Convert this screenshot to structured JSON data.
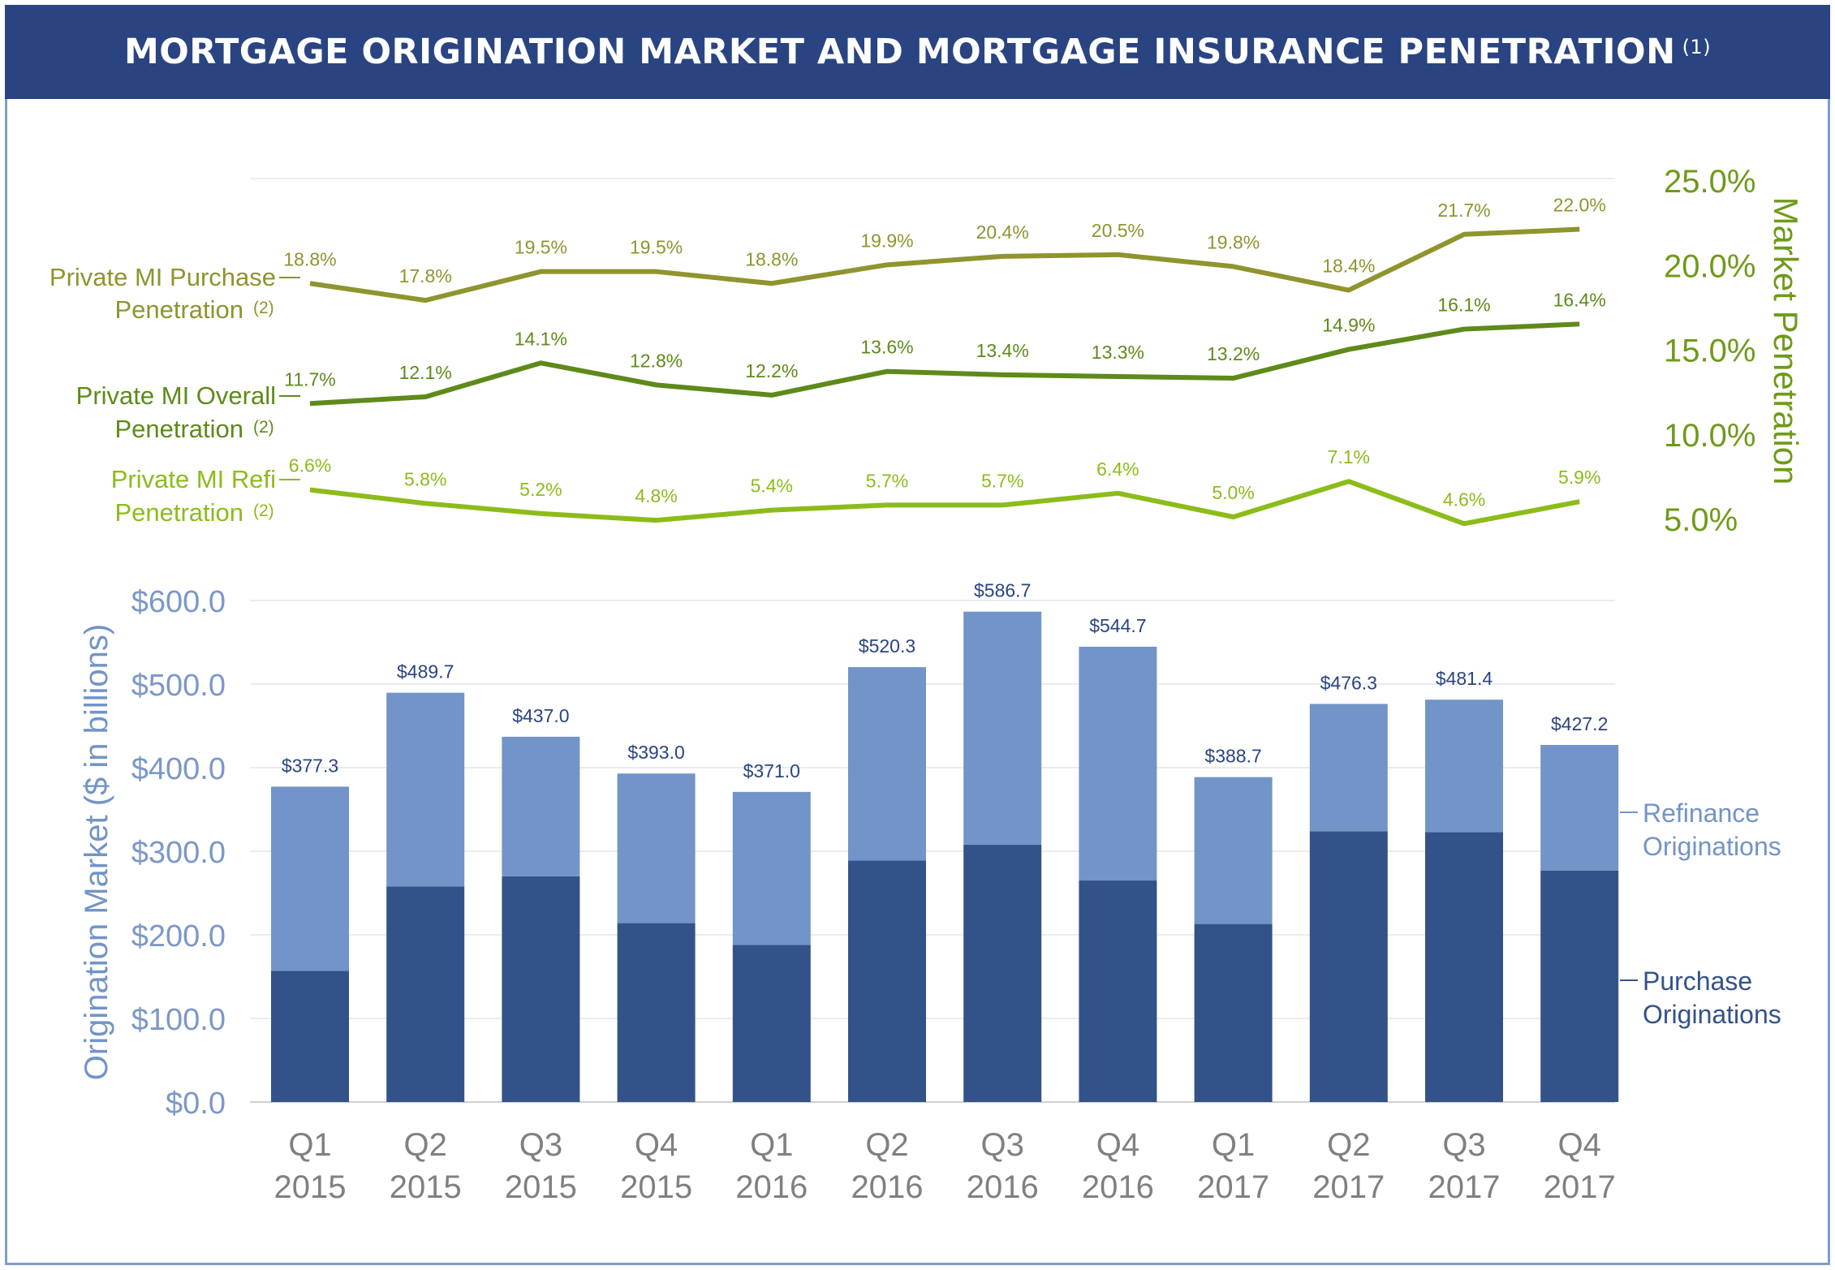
{
  "title": {
    "text": "MORTGAGE ORIGINATION MARKET AND MORTGAGE INSURANCE PENETRATION",
    "footnote": "(1)"
  },
  "chart_data": [
    {
      "type": "line",
      "categories": [
        "Q1 2015",
        "Q2 2015",
        "Q3 2015",
        "Q4 2015",
        "Q1 2016",
        "Q2 2016",
        "Q3 2016",
        "Q4 2016",
        "Q1 2017",
        "Q2 2017",
        "Q3 2017",
        "Q4 2017"
      ],
      "ylabel": "Market Penetration",
      "ylim": [
        5.0,
        25.0
      ],
      "yticks": [
        "25.0%",
        "20.0%",
        "15.0%",
        "10.0%",
        "5.0%"
      ],
      "series": [
        {
          "name_line1": "Private MI Purchase",
          "name_line2": "Penetration",
          "footnote": "(2)",
          "color": "#8f942e",
          "values": [
            18.8,
            17.8,
            19.5,
            19.5,
            18.8,
            19.9,
            20.4,
            20.5,
            19.8,
            18.4,
            21.7,
            22.0
          ],
          "labels": [
            "18.8%",
            "17.8%",
            "19.5%",
            "19.5%",
            "18.8%",
            "19.9%",
            "20.4%",
            "20.5%",
            "19.8%",
            "18.4%",
            "21.7%",
            "22.0%"
          ]
        },
        {
          "name_line1": "Private MI Overall",
          "name_line2": "Penetration",
          "footnote": "(2)",
          "color": "#5e8a1a",
          "values": [
            11.7,
            12.1,
            14.1,
            12.8,
            12.2,
            13.6,
            13.4,
            13.3,
            13.2,
            14.9,
            16.1,
            16.4
          ],
          "labels": [
            "11.7%",
            "12.1%",
            "14.1%",
            "12.8%",
            "12.2%",
            "13.6%",
            "13.4%",
            "13.3%",
            "13.2%",
            "14.9%",
            "16.1%",
            "16.4%"
          ]
        },
        {
          "name_line1": "Private MI Refi",
          "name_line2": "Penetration",
          "footnote": "(2)",
          "color": "#8cbc1a",
          "values": [
            6.6,
            5.8,
            5.2,
            4.8,
            5.4,
            5.7,
            5.7,
            6.4,
            5.0,
            7.1,
            4.6,
            5.9
          ],
          "labels": [
            "6.6%",
            "5.8%",
            "5.2%",
            "4.8%",
            "5.4%",
            "5.7%",
            "5.7%",
            "6.4%",
            "5.0%",
            "7.1%",
            "4.6%",
            "5.9%"
          ]
        }
      ]
    },
    {
      "type": "bar",
      "stacked": true,
      "ylabel": "Origination Market ($ in billions)",
      "ylim": [
        0,
        600
      ],
      "yticks": [
        "$600.0",
        "$500.0",
        "$400.0",
        "$300.0",
        "$200.0",
        "$100.0",
        "$0.0"
      ],
      "categories": [
        {
          "q": "Q1",
          "y": "2015"
        },
        {
          "q": "Q2",
          "y": "2015"
        },
        {
          "q": "Q3",
          "y": "2015"
        },
        {
          "q": "Q4",
          "y": "2015"
        },
        {
          "q": "Q1",
          "y": "2016"
        },
        {
          "q": "Q2",
          "y": "2016"
        },
        {
          "q": "Q3",
          "y": "2016"
        },
        {
          "q": "Q4",
          "y": "2016"
        },
        {
          "q": "Q1",
          "y": "2017"
        },
        {
          "q": "Q2",
          "y": "2017"
        },
        {
          "q": "Q3",
          "y": "2017"
        },
        {
          "q": "Q4",
          "y": "2017"
        }
      ],
      "totals": [
        377.3,
        489.7,
        437.0,
        393.0,
        371.0,
        520.3,
        586.7,
        544.7,
        388.7,
        476.3,
        481.4,
        427.2
      ],
      "total_labels": [
        "$377.3",
        "$489.7",
        "$437.0",
        "$393.0",
        "$371.0",
        "$520.3",
        "$586.7",
        "$544.7",
        "$388.7",
        "$476.3",
        "$481.4",
        "$427.2"
      ],
      "series": [
        {
          "name_line1": "Purchase",
          "name_line2": "Originations",
          "color": "#34528a",
          "values": [
            157,
            258,
            270,
            214,
            188,
            289,
            308,
            265,
            213,
            324,
            323,
            277
          ]
        },
        {
          "name_line1": "Refinance",
          "name_line2": "Originations",
          "color": "#7294c8",
          "values": [
            220.3,
            231.7,
            167.0,
            179.0,
            183.0,
            231.3,
            278.7,
            279.7,
            175.7,
            152.3,
            158.4,
            150.2
          ]
        }
      ]
    }
  ]
}
